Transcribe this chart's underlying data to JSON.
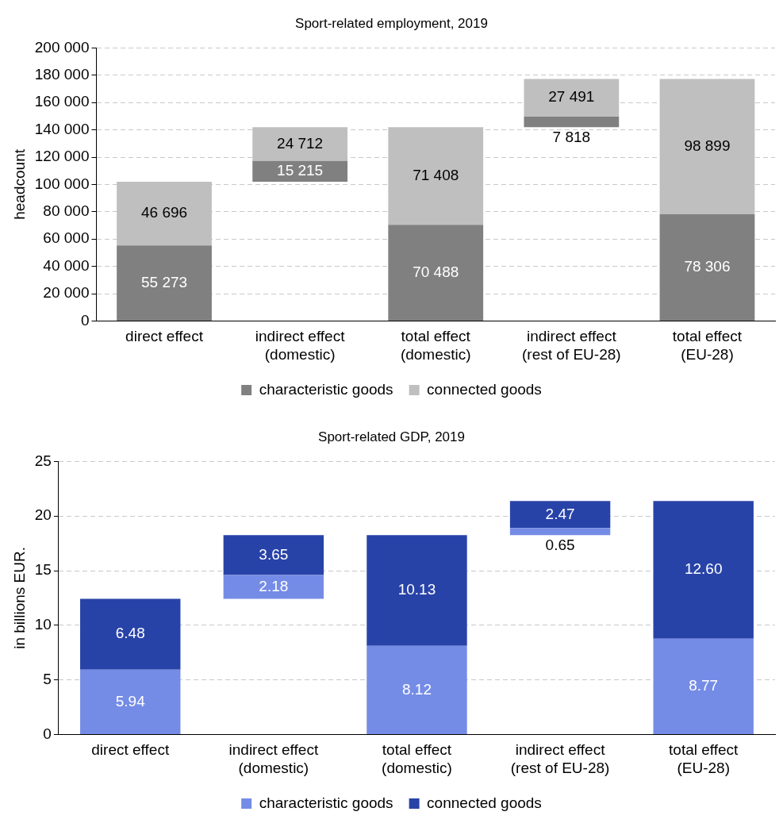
{
  "chart_data": [
    {
      "type": "bar",
      "title": "Sport-related employment, 2019",
      "ylabel": "headcount",
      "categories": [
        "direct effect",
        "indirect effect\n(domestic)",
        "total effect\n(domestic)",
        "indirect effect\n(rest of EU-28)",
        "total effect\n(EU-28)"
      ],
      "series": [
        {
          "name": "characteristic goods",
          "color": "#808080",
          "base": [
            0,
            101969,
            0,
            141896,
            0
          ],
          "values": [
            55273,
            15215,
            70488,
            7818,
            78306
          ],
          "value_labels": [
            "55 273",
            "15 215",
            "70 488",
            "7 818",
            "78 306"
          ]
        },
        {
          "name": "connected goods",
          "color": "#bfbfbf",
          "base": [
            55273,
            117184,
            70488,
            149714,
            78306
          ],
          "values": [
            46696,
            24712,
            71408,
            27491,
            98899
          ],
          "value_labels": [
            "46 696",
            "24 712",
            "71 408",
            "27 491",
            "98 899"
          ]
        }
      ],
      "ylim": [
        0,
        200000
      ],
      "yticks": [
        {
          "value": 0,
          "label": "0"
        },
        {
          "value": 20000,
          "label": "20 000"
        },
        {
          "value": 40000,
          "label": "40 000"
        },
        {
          "value": 60000,
          "label": "60 000"
        },
        {
          "value": 80000,
          "label": "80 000"
        },
        {
          "value": 100000,
          "label": "100 000"
        },
        {
          "value": 120000,
          "label": "120 000"
        },
        {
          "value": 140000,
          "label": "140 000"
        },
        {
          "value": 160000,
          "label": "160 000"
        },
        {
          "value": 180000,
          "label": "180 000"
        },
        {
          "value": 200000,
          "label": "200 000"
        }
      ],
      "grid": "y",
      "legend": "bottom"
    },
    {
      "type": "bar",
      "title": "Sport-related GDP, 2019",
      "ylabel": "in billions EUR.",
      "categories": [
        "direct effect",
        "indirect effect\n(domestic)",
        "total effect\n(domestic)",
        "indirect effect\n(rest of EU-28)",
        "total effect\n(EU-28)"
      ],
      "series": [
        {
          "name": "characteristic goods",
          "color": "#758ce6",
          "base": [
            0,
            12.42,
            0,
            18.25,
            0
          ],
          "values": [
            5.94,
            2.18,
            8.12,
            0.65,
            8.77
          ],
          "value_labels": [
            "5.94",
            "2.18",
            "8.12",
            "0.65",
            "8.77"
          ]
        },
        {
          "name": "connected goods",
          "color": "#2843a8",
          "base": [
            5.94,
            14.6,
            8.12,
            18.9,
            8.77
          ],
          "values": [
            6.48,
            3.65,
            10.13,
            2.47,
            12.6
          ],
          "value_labels": [
            "6.48",
            "3.65",
            "10.13",
            "2.47",
            "12.60"
          ]
        }
      ],
      "ylim": [
        0,
        25
      ],
      "yticks": [
        0,
        5,
        10,
        15,
        20,
        25
      ],
      "grid": "y",
      "legend": "bottom"
    }
  ]
}
